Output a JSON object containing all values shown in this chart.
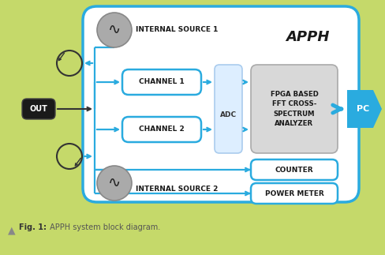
{
  "bg_color": "#c5d96a",
  "main_box_bg": "#ffffff",
  "main_box_border": "#2aabdf",
  "channel_box_bg": "#ffffff",
  "channel_box_border": "#2aabdf",
  "adc_box_bg": "#ddeeff",
  "adc_box_border": "#aaccee",
  "fpga_box_bg": "#d8d8d8",
  "fpga_box_border": "#aaaaaa",
  "out_box_bg": "#1a1a1a",
  "pc_box_bg": "#2aabdf",
  "arrow_color": "#2aabdf",
  "dark_arrow_color": "#333333",
  "source_circle_bg": "#aaaaaa",
  "source_circle_border": "#888888",
  "loop_circle_color": "#333333",
  "text_dark": "#1a1a1a",
  "text_white": "#ffffff",
  "caption_triangle": "#888888",
  "caption_bold": "#333333",
  "caption_normal": "#555555",
  "fig_caption_bold": "Fig. 1:",
  "fig_caption_rest": " APPH system block diagram.",
  "apph_label": "APPH",
  "out_label": "OUT",
  "pc_label": "PC",
  "internal_source1": "INTERNAL SOURCE 1",
  "internal_source2": "INTERNAL SOURCE 2",
  "channel1": "CHANNEL 1",
  "channel2": "CHANNEL 2",
  "adc_label": "ADC",
  "fpga_line1": "FPGA BASED",
  "fpga_line2": "FFT CROSS-",
  "fpga_line3": "SPECTRUM",
  "fpga_line4": "ANALYZER",
  "counter_label": "COUNTER",
  "power_meter_label": "POWER METER"
}
